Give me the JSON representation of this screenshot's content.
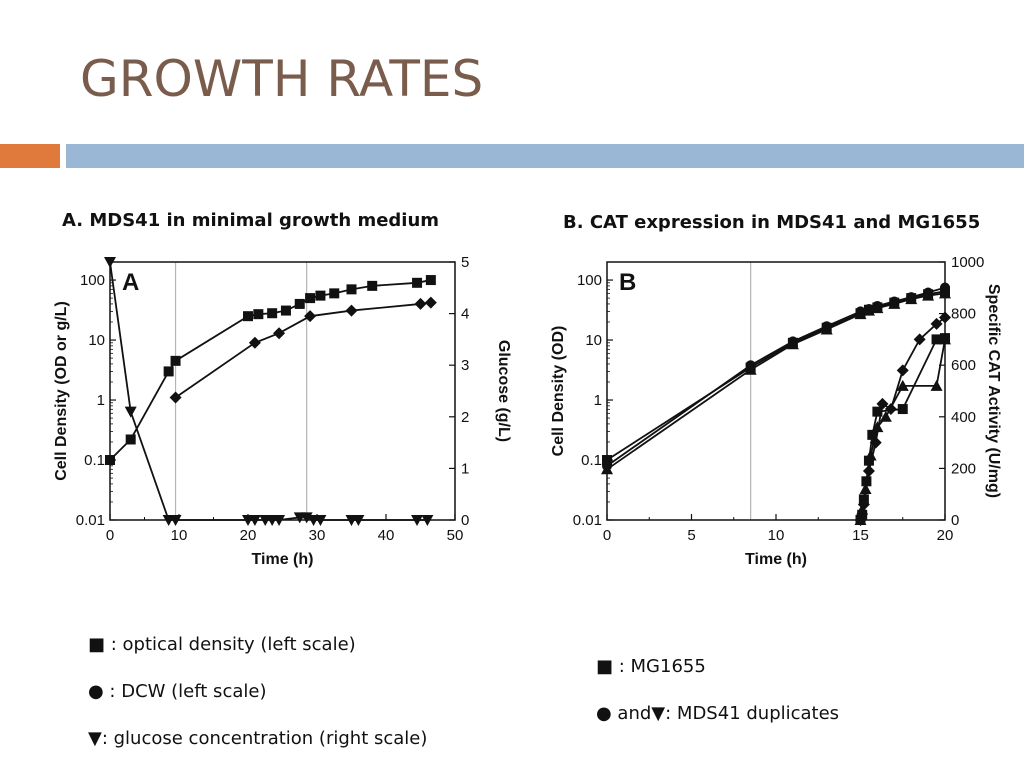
{
  "slide": {
    "title": "GROWTH RATES",
    "accent_colors": {
      "orange": "#e07a3c",
      "blue": "#9ab8d6",
      "title": "#7a5c4c"
    }
  },
  "legend_a": {
    "square": "■ : optical density (left scale)",
    "circle": "● : DCW (left scale)",
    "triangle": "▼: glucose concentration (right scale)"
  },
  "legend_b": {
    "square": "■ : MG1655",
    "circle_triangle": "● and▼: MDS41 duplicates"
  },
  "chart_data": [
    {
      "type": "line",
      "panel_title": "A.  MDS41 in minimal growth medium",
      "panel_letter": "A",
      "xlabel": "Time (h)",
      "ylabel": "Cell Density (OD or g/L)",
      "y2label": "Glucose (g/L)",
      "xlim": [
        0,
        50
      ],
      "ylim": [
        0.01,
        200
      ],
      "y_scale": "log",
      "y2lim": [
        0,
        5
      ],
      "x_ticks": [
        0,
        10,
        20,
        30,
        40,
        50
      ],
      "y_ticks": [
        {
          "v": 0.01,
          "label": "0.01"
        },
        {
          "v": 0.1,
          "label": "0.1"
        },
        {
          "v": 1,
          "label": "1"
        },
        {
          "v": 10,
          "label": "10"
        },
        {
          "v": 100,
          "label": "100"
        }
      ],
      "y2_ticks": [
        0,
        1,
        2,
        3,
        4,
        5
      ],
      "vlines": [
        9.5,
        28.5
      ],
      "series": [
        {
          "marker": "square",
          "axis": "left",
          "x": [
            0,
            3,
            8.5,
            9.5,
            20,
            21.5,
            23.5,
            25.5,
            27.5,
            29,
            30.5,
            32.5,
            35,
            38,
            44.5,
            46.5
          ],
          "y": [
            0.1,
            0.22,
            3.0,
            4.5,
            25,
            27,
            28,
            31,
            40,
            50,
            55,
            60,
            70,
            80,
            90,
            100
          ]
        },
        {
          "marker": "diamond",
          "axis": "left",
          "x": [
            9.5,
            21,
            24.5,
            29,
            35,
            45,
            46.5
          ],
          "y": [
            1.1,
            9,
            13,
            25,
            31,
            40,
            42
          ]
        },
        {
          "marker": "triangle-down",
          "axis": "right",
          "x": [
            0,
            3,
            8.5,
            9.5,
            20,
            21,
            22.5,
            23.5,
            24.5,
            27.5,
            28.5,
            29.5,
            30.5,
            35,
            36,
            44.5,
            46
          ],
          "y": [
            5,
            2.1,
            0,
            0,
            0,
            0,
            0,
            0,
            0,
            0.05,
            0.05,
            0,
            0,
            0,
            0,
            0,
            0
          ]
        }
      ]
    },
    {
      "type": "line",
      "panel_title": "B.  CAT expression in MDS41 and MG1655",
      "panel_letter": "B",
      "xlabel": "Time (h)",
      "ylabel": "Cell Density (OD)",
      "y2label": "Specific CAT Activity (U/mg)",
      "xlim": [
        0,
        20
      ],
      "ylim": [
        0.01,
        200
      ],
      "y_scale": "log",
      "y2lim": [
        0,
        1000
      ],
      "x_ticks": [
        0,
        5,
        10,
        15,
        20
      ],
      "y_ticks": [
        {
          "v": 0.01,
          "label": "0.01"
        },
        {
          "v": 0.1,
          "label": "0.1"
        },
        {
          "v": 1,
          "label": "1"
        },
        {
          "v": 10,
          "label": "10"
        },
        {
          "v": 100,
          "label": "100"
        }
      ],
      "y2_ticks": [
        0,
        200,
        400,
        600,
        800,
        1000
      ],
      "vlines": [
        8.5
      ],
      "series": [
        {
          "name": "MG1655",
          "marker": "square",
          "axis": "left",
          "x": [
            0,
            8.5,
            11,
            13,
            15,
            15.5,
            16,
            17,
            18,
            19,
            20
          ],
          "y": [
            0.1,
            3.5,
            9,
            16,
            28,
            32,
            35,
            42,
            50,
            58,
            65
          ]
        },
        {
          "marker": "circle",
          "axis": "left",
          "x": [
            0,
            8.5,
            11,
            13,
            15,
            15.5,
            16,
            17,
            18,
            19,
            20
          ],
          "y": [
            0.08,
            3.8,
            9.5,
            17,
            30,
            33,
            37,
            44,
            52,
            62,
            75
          ]
        },
        {
          "marker": "triangle-up",
          "axis": "left",
          "x": [
            0,
            8.5,
            11,
            13,
            15,
            15.5,
            16,
            17,
            18,
            19,
            20
          ],
          "y": [
            0.07,
            3.2,
            8.5,
            15,
            27,
            31,
            34,
            40,
            48,
            55,
            60
          ]
        },
        {
          "marker": "square",
          "axis": "right",
          "x": [
            15,
            15.1,
            15.2,
            15.35,
            15.5,
            15.7,
            16,
            17.5,
            19.5,
            20
          ],
          "y": [
            0,
            20,
            80,
            150,
            230,
            330,
            420,
            430,
            700,
            705
          ]
        },
        {
          "marker": "diamond",
          "axis": "right",
          "x": [
            15,
            15.2,
            15.5,
            15.9,
            16.3,
            16.8,
            17.5,
            18.5,
            19.5,
            20
          ],
          "y": [
            0,
            60,
            190,
            300,
            450,
            430,
            580,
            700,
            760,
            785
          ]
        },
        {
          "marker": "triangle-up",
          "axis": "right",
          "x": [
            15,
            15.1,
            15.3,
            15.6,
            16,
            16.5,
            17.5,
            19.5,
            20
          ],
          "y": [
            0,
            40,
            120,
            250,
            360,
            400,
            520,
            520,
            700
          ]
        }
      ]
    }
  ]
}
